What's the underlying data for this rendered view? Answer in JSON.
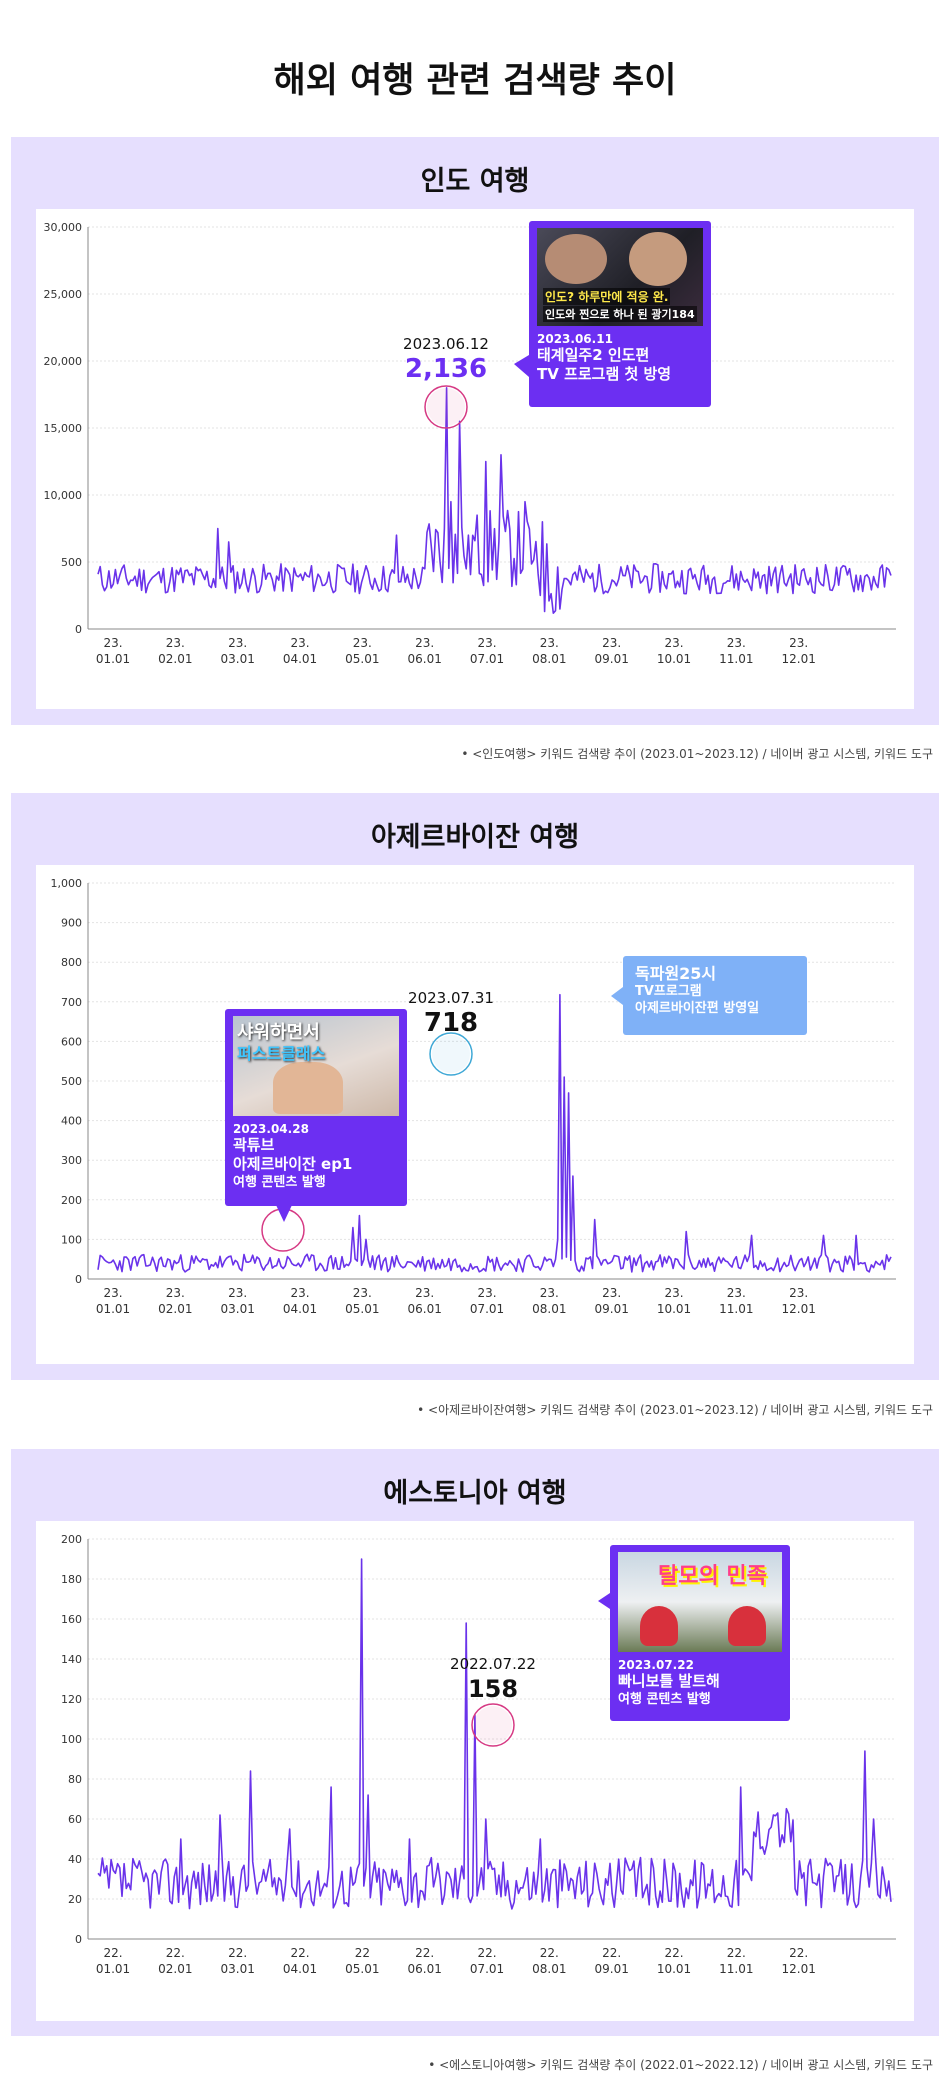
{
  "title": "해외 여행 관련 검색량 추이",
  "colors": {
    "line": "#6a33ea",
    "panel": "#e6dffe",
    "accent": "#6c2ff2",
    "circle_pink": "#d63a84",
    "circle_blue": "#3fa8d6",
    "light_callout": "#7fb1f7"
  },
  "chart_data": [
    {
      "type": "line",
      "title": "인도 여행",
      "source": "• <인도여행> 키워드 검색량 추이 (2023.01~2023.12) / 네이버 광고 시스템, 키워드 도구",
      "y_ticks": [
        "0",
        "500",
        "10,000",
        "15,000",
        "20,000",
        "25,000",
        "30,000"
      ],
      "ylim": [
        0,
        30000
      ],
      "x_ticks": [
        [
          "23.",
          "01.01"
        ],
        [
          "23.",
          "02.01"
        ],
        [
          "23.",
          "03.01"
        ],
        [
          "23.",
          "04.01"
        ],
        [
          "23.",
          "05.01"
        ],
        [
          "23.",
          "06.01"
        ],
        [
          "23.",
          "07.01"
        ],
        [
          "23.",
          "08.01"
        ],
        [
          "23.",
          "09.01"
        ],
        [
          "23.",
          "10.01"
        ],
        [
          "23.",
          "11.01"
        ],
        [
          "23.",
          "12.01"
        ]
      ],
      "peak": {
        "date": "2023.06.12",
        "value": "2,136"
      },
      "callout": {
        "date": "2023.06.11",
        "lines": [
          "태계일주2 인도편",
          "TV 프로그램 첫 방영"
        ],
        "thumb_text": [
          "인도? 하루만에 적응 완.",
          "인도와 찐으로 하나 된 광기184"
        ]
      }
    },
    {
      "type": "line",
      "title": "아제르바이잔 여행",
      "source": "• <아제르바이잔여행> 키워드 검색량 추이 (2023.01~2023.12) / 네이버 광고 시스템, 키워드 도구",
      "y_ticks": [
        "0",
        "100",
        "200",
        "300",
        "400",
        "500",
        "600",
        "700",
        "800",
        "900",
        "1,000"
      ],
      "ylim": [
        0,
        1000
      ],
      "x_ticks": [
        [
          "23.",
          "01.01"
        ],
        [
          "23.",
          "02.01"
        ],
        [
          "23.",
          "03.01"
        ],
        [
          "23.",
          "04.01"
        ],
        [
          "23.",
          "05.01"
        ],
        [
          "23.",
          "06.01"
        ],
        [
          "23.",
          "07.01"
        ],
        [
          "23.",
          "08.01"
        ],
        [
          "23.",
          "09.01"
        ],
        [
          "23.",
          "10.01"
        ],
        [
          "23.",
          "11.01"
        ],
        [
          "23.",
          "12.01"
        ]
      ],
      "peak": {
        "date": "2023.07.31",
        "value": "718"
      },
      "callout_left": {
        "date": "2023.04.28",
        "lines": [
          "곽튜브",
          "아제르바이잔 ep1"
        ],
        "small_line": "여행 콘텐츠 발행",
        "thumb_text": [
          "샤워하면서",
          "퍼스트클래스"
        ]
      },
      "callout_right": {
        "lines": [
          "독파원25시"
        ],
        "small_lines": [
          "TV프로그램",
          "아제르바이잔편 방영일"
        ]
      }
    },
    {
      "type": "line",
      "title": "에스토니아 여행",
      "source": "• <에스토니아여행> 키워드 검색량 추이 (2022.01~2022.12) / 네이버 광고 시스템, 키워드 도구",
      "y_ticks": [
        "0",
        "20",
        "40",
        "60",
        "80",
        "100",
        "120",
        "140",
        "160",
        "180",
        "200"
      ],
      "ylim": [
        0,
        200
      ],
      "x_ticks": [
        [
          "22.",
          "01.01"
        ],
        [
          "22.",
          "02.01"
        ],
        [
          "22.",
          "03.01"
        ],
        [
          "22.",
          "04.01"
        ],
        [
          "22",
          "05.01"
        ],
        [
          "22.",
          "06.01"
        ],
        [
          "22.",
          "07.01"
        ],
        [
          "22.",
          "08.01"
        ],
        [
          "22.",
          "09.01"
        ],
        [
          "22.",
          "10.01"
        ],
        [
          "22.",
          "11.01"
        ],
        [
          "22.",
          "12.01"
        ]
      ],
      "peak": {
        "date": "2022.07.22",
        "value": "158"
      },
      "callout": {
        "date": "2023.07.22",
        "lines": [
          "빠니보틀 발트해"
        ],
        "small_line": "여행 콘텐츠 발행",
        "thumb_text": [
          "탈모의 민족"
        ]
      }
    }
  ]
}
